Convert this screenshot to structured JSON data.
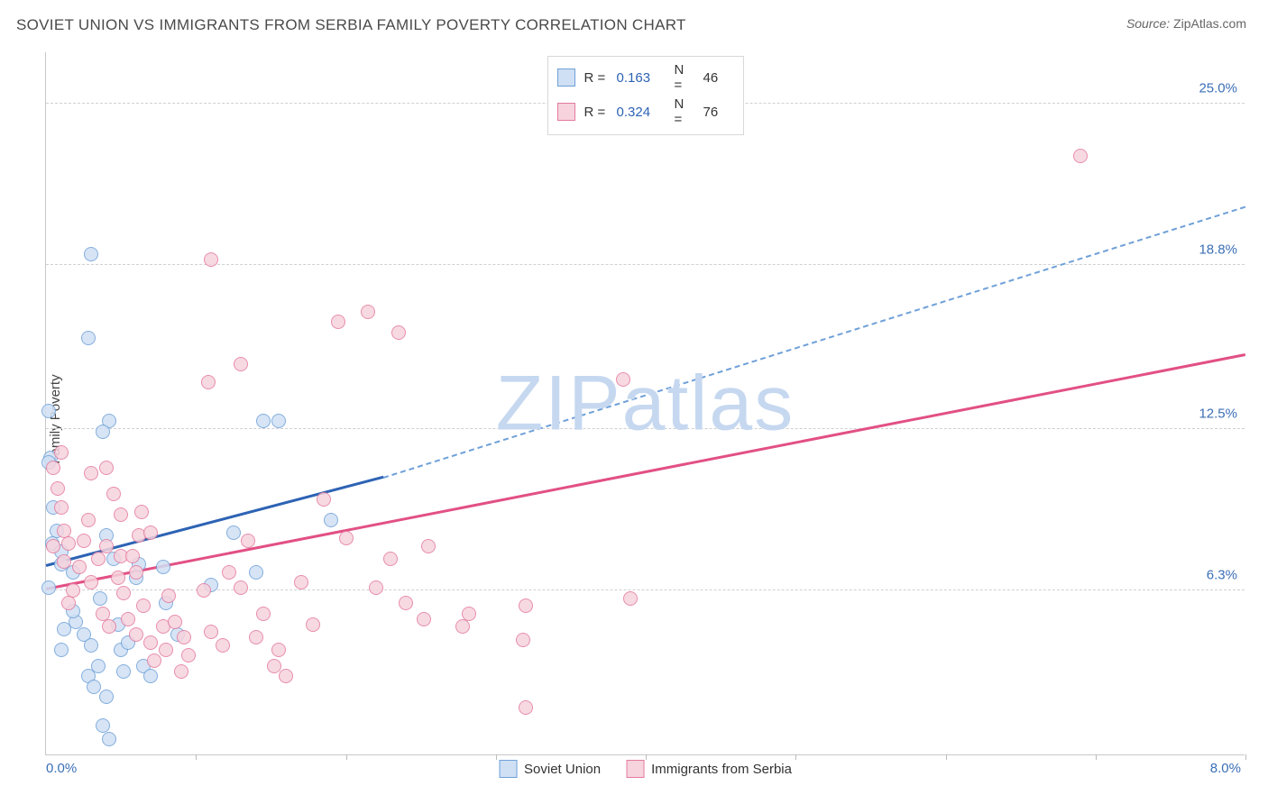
{
  "title": "SOVIET UNION VS IMMIGRANTS FROM SERBIA FAMILY POVERTY CORRELATION CHART",
  "source_label": "Source:",
  "source_value": "ZipAtlas.com",
  "ylabel": "Family Poverty",
  "watermark": {
    "pre": "ZIP",
    "post": "atlas",
    "color": "#c6d8f0"
  },
  "chart": {
    "type": "scatter",
    "background_color": "#ffffff",
    "grid_color": "#d0d0d0",
    "axis_color": "#c8c8c8",
    "xlim": [
      0,
      8.0
    ],
    "ylim": [
      0,
      27.0
    ],
    "x_origin_label": "0.0%",
    "x_max_label": "8.0%",
    "x_label_color": "#3b6fb6",
    "x_ticks": [
      0,
      1,
      2,
      3,
      4,
      5,
      6,
      7,
      8
    ],
    "y_ticks": [
      {
        "v": 6.3,
        "label": "6.3%"
      },
      {
        "v": 12.5,
        "label": "12.5%"
      },
      {
        "v": 18.8,
        "label": "18.8%"
      },
      {
        "v": 25.0,
        "label": "25.0%"
      }
    ],
    "y_label_color": "#3b6fb6",
    "marker_radius": 8,
    "series": [
      {
        "key": "soviet",
        "name": "Soviet Union",
        "fill": "#cfe0f4",
        "stroke": "#6fa0d8",
        "r_value": "0.163",
        "n_value": "46",
        "trend": {
          "x1": 0.0,
          "y1": 7.2,
          "x2": 2.25,
          "y2": 10.6,
          "solid_color": "#2d63b4",
          "dash_x2": 8.0,
          "dash_y2": 21.0,
          "dash_color": "#6fa0d8"
        },
        "points": [
          [
            0.02,
            13.2
          ],
          [
            0.03,
            11.4
          ],
          [
            0.02,
            11.2
          ],
          [
            0.05,
            9.5
          ],
          [
            0.07,
            8.6
          ],
          [
            0.04,
            8.1
          ],
          [
            0.1,
            7.8
          ],
          [
            0.1,
            7.3
          ],
          [
            0.18,
            7.0
          ],
          [
            0.02,
            6.4
          ],
          [
            0.3,
            19.2
          ],
          [
            0.28,
            16.0
          ],
          [
            0.42,
            12.8
          ],
          [
            0.38,
            12.4
          ],
          [
            0.4,
            8.4
          ],
          [
            0.45,
            7.5
          ],
          [
            0.36,
            6.0
          ],
          [
            0.2,
            5.1
          ],
          [
            0.25,
            4.6
          ],
          [
            0.3,
            4.2
          ],
          [
            0.28,
            3.0
          ],
          [
            0.35,
            3.4
          ],
          [
            0.32,
            2.6
          ],
          [
            0.5,
            4.0
          ],
          [
            0.48,
            5.0
          ],
          [
            0.55,
            4.3
          ],
          [
            0.52,
            3.2
          ],
          [
            0.4,
            2.2
          ],
          [
            0.6,
            6.8
          ],
          [
            0.62,
            7.3
          ],
          [
            0.1,
            4.0
          ],
          [
            0.12,
            4.8
          ],
          [
            0.18,
            5.5
          ],
          [
            0.38,
            1.1
          ],
          [
            0.42,
            0.6
          ],
          [
            0.65,
            3.4
          ],
          [
            0.7,
            3.0
          ],
          [
            0.8,
            5.8
          ],
          [
            0.88,
            4.6
          ],
          [
            0.78,
            7.2
          ],
          [
            1.25,
            8.5
          ],
          [
            1.45,
            12.8
          ],
          [
            1.55,
            12.8
          ],
          [
            1.9,
            9.0
          ],
          [
            1.4,
            7.0
          ],
          [
            1.1,
            6.5
          ]
        ]
      },
      {
        "key": "serbia",
        "name": "Immigrants from Serbia",
        "fill": "#f6d3dd",
        "stroke": "#e47a9e",
        "r_value": "0.324",
        "n_value": "76",
        "trend": {
          "x1": 0.0,
          "y1": 6.3,
          "x2": 8.0,
          "y2": 15.3,
          "solid_color": "#e25084"
        },
        "points": [
          [
            0.05,
            11.0
          ],
          [
            0.08,
            10.2
          ],
          [
            0.1,
            9.5
          ],
          [
            0.12,
            8.6
          ],
          [
            0.05,
            8.0
          ],
          [
            0.15,
            8.1
          ],
          [
            0.12,
            7.4
          ],
          [
            0.22,
            7.2
          ],
          [
            0.25,
            8.2
          ],
          [
            0.28,
            9.0
          ],
          [
            0.3,
            10.8
          ],
          [
            0.4,
            11.0
          ],
          [
            0.45,
            10.0
          ],
          [
            0.4,
            8.0
          ],
          [
            0.5,
            7.6
          ],
          [
            0.48,
            6.8
          ],
          [
            0.52,
            6.2
          ],
          [
            0.6,
            7.0
          ],
          [
            0.58,
            7.6
          ],
          [
            0.62,
            8.4
          ],
          [
            0.38,
            5.4
          ],
          [
            0.42,
            4.9
          ],
          [
            0.55,
            5.2
          ],
          [
            0.6,
            4.6
          ],
          [
            0.65,
            5.7
          ],
          [
            0.7,
            4.3
          ],
          [
            0.78,
            4.9
          ],
          [
            0.8,
            4.0
          ],
          [
            0.86,
            5.1
          ],
          [
            0.92,
            4.5
          ],
          [
            0.9,
            3.2
          ],
          [
            0.95,
            3.8
          ],
          [
            1.05,
            6.3
          ],
          [
            1.1,
            4.7
          ],
          [
            1.18,
            4.2
          ],
          [
            1.22,
            7.0
          ],
          [
            1.3,
            6.4
          ],
          [
            1.35,
            8.2
          ],
          [
            1.45,
            5.4
          ],
          [
            1.55,
            4.0
          ],
          [
            1.52,
            3.4
          ],
          [
            1.6,
            3.0
          ],
          [
            1.1,
            19.0
          ],
          [
            1.08,
            14.3
          ],
          [
            1.3,
            15.0
          ],
          [
            1.95,
            16.6
          ],
          [
            2.15,
            17.0
          ],
          [
            1.85,
            9.8
          ],
          [
            2.0,
            8.3
          ],
          [
            2.35,
            16.2
          ],
          [
            2.2,
            6.4
          ],
          [
            2.3,
            7.5
          ],
          [
            2.4,
            5.8
          ],
          [
            2.52,
            5.2
          ],
          [
            2.55,
            8.0
          ],
          [
            2.78,
            4.9
          ],
          [
            2.82,
            5.4
          ],
          [
            3.18,
            4.4
          ],
          [
            3.2,
            5.7
          ],
          [
            3.2,
            1.8
          ],
          [
            3.85,
            14.4
          ],
          [
            3.9,
            6.0
          ],
          [
            6.9,
            23.0
          ],
          [
            0.3,
            6.6
          ],
          [
            0.35,
            7.5
          ],
          [
            0.64,
            9.3
          ],
          [
            0.7,
            8.5
          ],
          [
            0.72,
            3.6
          ],
          [
            0.82,
            6.1
          ],
          [
            0.15,
            5.8
          ],
          [
            0.18,
            6.3
          ],
          [
            0.5,
            9.2
          ],
          [
            0.1,
            11.6
          ],
          [
            1.7,
            6.6
          ],
          [
            1.78,
            5.0
          ],
          [
            1.4,
            4.5
          ]
        ]
      }
    ]
  },
  "legend_r_label": "R =",
  "legend_n_label": "N =",
  "legend_value_color": "#2d63b4"
}
